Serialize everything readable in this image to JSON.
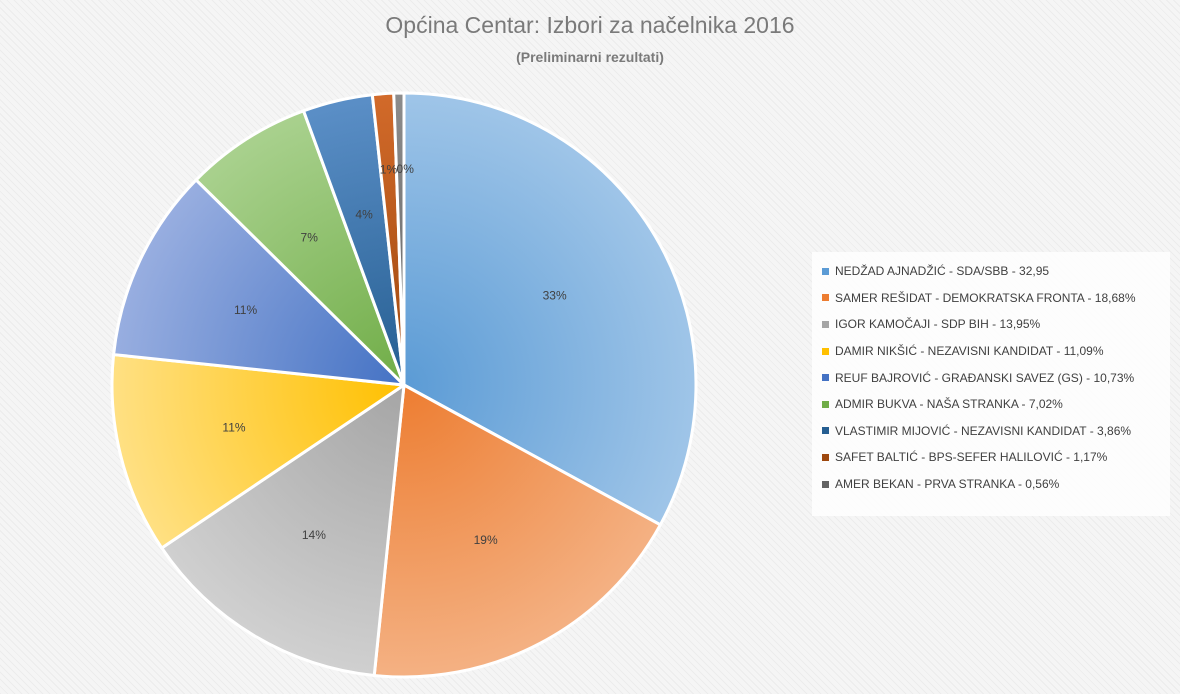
{
  "chart_data": {
    "type": "pie",
    "title": "Općina Centar: Izbori za načelnika 2016",
    "subtitle": "(Preliminarni rezultati)",
    "legend_position": "right",
    "slices": [
      {
        "legend": "NEDŽAD AJNADŽIĆ - SDA/SBB - 32,95",
        "value": 32.95,
        "data_label": "33%",
        "color": "#5b9bd5",
        "light": "#9fc5e8"
      },
      {
        "legend": "SAMER REŠIDAT - DEMOKRATSKA FRONTA - 18,68%",
        "value": 18.68,
        "data_label": "19%",
        "color": "#ed7d31",
        "light": "#f4b183"
      },
      {
        "legend": "IGOR KAMOČAJI - SDP BIH - 13,95%",
        "value": 13.95,
        "data_label": "14%",
        "color": "#a5a5a5",
        "light": "#d0d0d0"
      },
      {
        "legend": "DAMIR NIKŠIĆ - NEZAVISNI KANDIDAT  - 11,09%",
        "value": 11.09,
        "data_label": "11%",
        "color": "#ffc000",
        "light": "#ffe083"
      },
      {
        "legend": "REUF BAJROVIĆ - GRAĐANSKI SAVEZ (GS) - 10,73%",
        "value": 10.73,
        "data_label": "11%",
        "color": "#4472c4",
        "light": "#98aee0"
      },
      {
        "legend": "ADMIR BUKVA - NAŠA STRANKA - 7,02%",
        "value": 7.02,
        "data_label": "7%",
        "color": "#70ad47",
        "light": "#a9d18e"
      },
      {
        "legend": "VLASTIMIR MIJOVIĆ - NEZAVISNI KANDIDAT - 3,86%",
        "value": 3.86,
        "data_label": "4%",
        "color": "#255e91",
        "light": "#5b8fc7"
      },
      {
        "legend": "SAFET BALTIĆ - BPS-SEFER HALILOVIĆ - 1,17%",
        "value": 1.17,
        "data_label": "1%",
        "color": "#9e480e",
        "light": "#d26a2a"
      },
      {
        "legend": "AMER BEKAN - PRVA STRANKA - 0,56%",
        "value": 0.56,
        "data_label": "0%",
        "color": "#636363",
        "light": "#8c8c8c"
      }
    ]
  }
}
